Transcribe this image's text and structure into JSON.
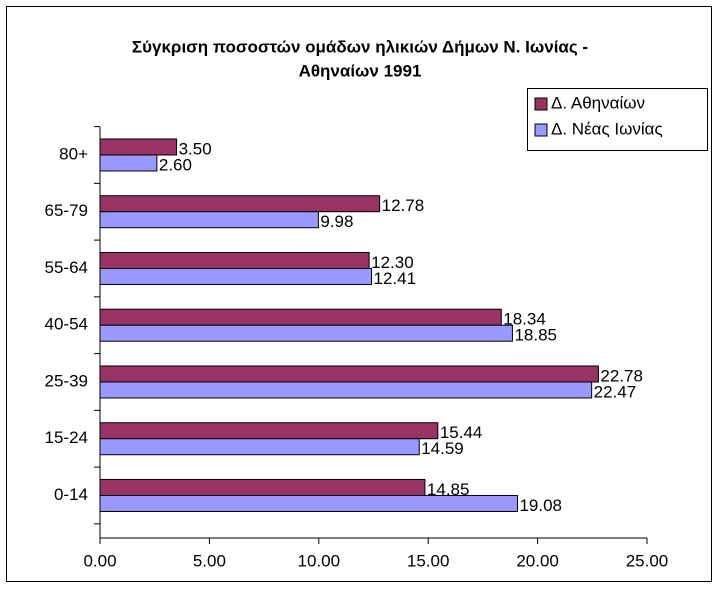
{
  "chart_data": {
    "type": "barh",
    "title": "Σύγκριση ποσοστών ομάδων ηλικιών Δήμων Ν. Ιωνίας -",
    "subtitle": "Αθηναίων 1991",
    "categories": [
      "0-14",
      "15-24",
      "25-39",
      "40-54",
      "55-64",
      "65-79",
      "80+"
    ],
    "series": [
      {
        "name": "Δ. Αθηναίων",
        "color": "#993366",
        "values": [
          14.85,
          15.44,
          22.78,
          18.34,
          12.3,
          12.78,
          3.5
        ],
        "value_labels": [
          "14.85",
          "15.44",
          "22.78",
          "18.34",
          "12.30",
          "12.78",
          "3.50"
        ]
      },
      {
        "name": "Δ. Νέας Ιωνίας",
        "color": "#9999ff",
        "values": [
          19.08,
          14.59,
          22.47,
          18.85,
          12.41,
          9.98,
          2.6
        ],
        "value_labels": [
          "19.08",
          "14.59",
          "22.47",
          "18.85",
          "12.41",
          "9.98",
          "2.60"
        ]
      }
    ],
    "xlim": [
      0,
      25
    ],
    "xticks": [
      {
        "value": 0,
        "label": "0.00"
      },
      {
        "value": 5,
        "label": "5.00"
      },
      {
        "value": 10,
        "label": "10.00"
      },
      {
        "value": 15,
        "label": "15.00"
      },
      {
        "value": 20,
        "label": "20.00"
      },
      {
        "value": 25,
        "label": "25.00"
      }
    ],
    "grid": false,
    "legend": "top-right"
  }
}
